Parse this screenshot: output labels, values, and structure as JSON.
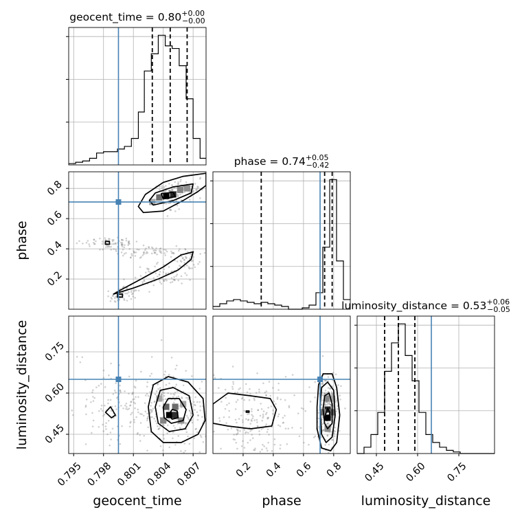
{
  "chart_data": {
    "type": "corner",
    "parameters": [
      "geocent_time",
      "phase",
      "luminosity_distance"
    ],
    "axis_labels": {
      "geocent_time": "geocent_time",
      "phase": "phase",
      "luminosity_distance": "luminosity_distance"
    },
    "ranges": {
      "geocent_time": [
        0.7945,
        0.8083
      ],
      "phase": [
        0.0,
        0.91
      ],
      "luminosity_distance": [
        0.38,
        0.88
      ]
    },
    "ticks": {
      "geocent_time": {
        "values": [
          0.795,
          0.798,
          0.801,
          0.804,
          0.807
        ],
        "labels": [
          "0.795",
          "0.798",
          "0.801",
          "0.804",
          "0.807"
        ]
      },
      "phase_x": {
        "values": [
          0.2,
          0.4,
          0.6,
          0.8
        ],
        "labels": [
          "0.2",
          "0.4",
          "0.6",
          "0.8"
        ]
      },
      "phase_y": {
        "values": [
          0.2,
          0.4,
          0.6,
          0.8
        ],
        "labels": [
          "0.2",
          "0.4",
          "0.6",
          "0.8"
        ]
      },
      "luminosity_distance": {
        "values": [
          0.45,
          0.6,
          0.75
        ],
        "labels": [
          "0.45",
          "0.60",
          "0.75"
        ]
      }
    },
    "truths": {
      "geocent_time": 0.7995,
      "phase": 0.71,
      "luminosity_distance": 0.65
    },
    "colors": {
      "truth": "#4682b4",
      "hist": "#000000",
      "grid": "#b0b0b0"
    },
    "grid": true,
    "titles": [
      {
        "param": "geocent_time",
        "prefix": "geocent_time = ",
        "value": "0.80",
        "plus": "+0.00",
        "minus": "−0.00"
      },
      {
        "param": "phase",
        "prefix": "phase = ",
        "value": "0.74",
        "plus": "+0.05",
        "minus": "−0.42"
      },
      {
        "param": "luminosity_distance",
        "prefix": "luminosity_distance = ",
        "value": "0.53",
        "plus": "+0.06",
        "minus": "−0.05"
      }
    ],
    "diagonals": [
      {
        "param": "geocent_time",
        "quantiles": [
          0.8029,
          0.8047,
          0.8064
        ],
        "bin_edges": [
          0.7945,
          0.7952,
          0.7959,
          0.7966,
          0.7973,
          0.798,
          0.7987,
          0.7994,
          0.8001,
          0.8008,
          0.8015,
          0.8021,
          0.8028,
          0.8035,
          0.8042,
          0.8049,
          0.8056,
          0.8063,
          0.807,
          0.8077,
          0.8083
        ],
        "counts": [
          1,
          2,
          3,
          5,
          9,
          10,
          10,
          12,
          14,
          20,
          40,
          71,
          84,
          98,
          90,
          88,
          75,
          50,
          20,
          5
        ]
      },
      {
        "param": "phase",
        "quantiles": [
          0.32,
          0.74,
          0.79
        ],
        "bin_edges": [
          0.0,
          0.0455,
          0.091,
          0.1365,
          0.182,
          0.2275,
          0.273,
          0.3185,
          0.364,
          0.4095,
          0.455,
          0.5005,
          0.546,
          0.5915,
          0.637,
          0.6825,
          0.728,
          0.7735,
          0.819,
          0.8645,
          0.91
        ],
        "counts": [
          2,
          4,
          6,
          7,
          6,
          5,
          4,
          5,
          4,
          3,
          2,
          0,
          0,
          1,
          3,
          12,
          45,
          94,
          35,
          7
        ]
      },
      {
        "param": "luminosity_distance",
        "quantiles": [
          0.48,
          0.53,
          0.59
        ],
        "bin_edges": [
          0.38,
          0.405,
          0.43,
          0.455,
          0.48,
          0.505,
          0.53,
          0.555,
          0.58,
          0.605,
          0.63,
          0.655,
          0.68,
          0.705,
          0.73,
          0.755,
          0.78,
          0.805,
          0.83,
          0.855,
          0.88
        ],
        "counts": [
          0,
          4,
          12,
          26,
          52,
          70,
          82,
          62,
          46,
          26,
          12,
          7,
          4,
          2,
          1,
          0,
          0,
          0,
          0,
          0
        ]
      }
    ],
    "pairs": [
      {
        "x": "geocent_time",
        "y": "phase",
        "blobs": [
          {
            "cx": 0.8045,
            "cy": 0.75,
            "sx": 0.0007,
            "sy": 0.045,
            "w": 3,
            "n": 90
          },
          {
            "cx": 0.8063,
            "cy": 0.8,
            "sx": 0.0007,
            "sy": 0.04,
            "w": 2,
            "n": 60
          },
          {
            "cx": 0.7985,
            "cy": 0.44,
            "sx": 0.0015,
            "sy": 0.02,
            "w": 1,
            "n": 70
          },
          {
            "cx": 0.803,
            "cy": 0.38,
            "sx": 0.002,
            "sy": 0.02,
            "w": 1,
            "n": 70
          },
          {
            "cx": 0.8,
            "cy": 0.1,
            "sx": 0.0008,
            "sy": 0.035,
            "w": 1,
            "n": 60
          },
          {
            "cx": 0.804,
            "cy": 0.22,
            "sx": 0.0015,
            "sy": 0.04,
            "w": 1,
            "n": 70
          },
          {
            "cx": 0.8065,
            "cy": 0.32,
            "sx": 0.0007,
            "sy": 0.03,
            "w": 1,
            "n": 40
          }
        ],
        "cells": [
          [
            0.8043,
            0.75,
            1.0
          ],
          [
            0.805,
            0.76,
            0.85
          ],
          [
            0.8036,
            0.74,
            0.55
          ],
          [
            0.8057,
            0.79,
            0.45
          ],
          [
            0.8064,
            0.8,
            0.4
          ],
          [
            0.8029,
            0.71,
            0.3
          ]
        ],
        "contours": [
          [
            [
              0.802,
              0.64
            ],
            [
              0.804,
              0.65
            ],
            [
              0.806,
              0.72
            ],
            [
              0.8075,
              0.78
            ],
            [
              0.8083,
              0.82
            ],
            [
              0.8083,
              0.9
            ],
            [
              0.806,
              0.88
            ],
            [
              0.804,
              0.84
            ],
            [
              0.8022,
              0.76
            ],
            [
              0.8015,
              0.68
            ]
          ],
          [
            [
              0.803,
              0.69
            ],
            [
              0.805,
              0.72
            ],
            [
              0.8068,
              0.77
            ],
            [
              0.807,
              0.83
            ],
            [
              0.805,
              0.81
            ],
            [
              0.8032,
              0.77
            ],
            [
              0.8026,
              0.72
            ]
          ],
          [
            [
              0.804,
              0.73
            ],
            [
              0.8052,
              0.745
            ],
            [
              0.805,
              0.775
            ],
            [
              0.8038,
              0.765
            ]
          ],
          [
            [
              0.799,
              0.1
            ],
            [
              0.801,
              0.14
            ],
            [
              0.8035,
              0.2
            ],
            [
              0.8055,
              0.26
            ],
            [
              0.8068,
              0.33
            ],
            [
              0.807,
              0.38
            ],
            [
              0.8058,
              0.36
            ],
            [
              0.804,
              0.28
            ],
            [
              0.8015,
              0.19
            ],
            [
              0.7998,
              0.13
            ]
          ],
          [
            [
              0.7982,
              0.43
            ],
            [
              0.7986,
              0.43
            ],
            [
              0.7986,
              0.45
            ],
            [
              0.7982,
              0.45
            ]
          ],
          [
            [
              0.7994,
              0.08
            ],
            [
              0.7999,
              0.08
            ],
            [
              0.7999,
              0.1
            ],
            [
              0.7994,
              0.1
            ]
          ]
        ]
      },
      {
        "x": "geocent_time",
        "y": "luminosity_distance",
        "blobs": [
          {
            "cx": 0.8048,
            "cy": 0.53,
            "sx": 0.0022,
            "sy": 0.075,
            "w": 3,
            "n": 260
          },
          {
            "cx": 0.799,
            "cy": 0.55,
            "sx": 0.0022,
            "sy": 0.07,
            "w": 1,
            "n": 120
          }
        ],
        "cells": [
          [
            0.8046,
            0.52,
            1.0
          ],
          [
            0.8052,
            0.52,
            0.8
          ],
          [
            0.8043,
            0.55,
            0.6
          ],
          [
            0.8052,
            0.55,
            0.55
          ],
          [
            0.804,
            0.5,
            0.45
          ],
          [
            0.8058,
            0.5,
            0.4
          ],
          [
            0.8036,
            0.58,
            0.3
          ],
          [
            0.806,
            0.56,
            0.3
          ]
        ],
        "contours": [
          [
            [
              0.8025,
              0.55
            ],
            [
              0.803,
              0.63
            ],
            [
              0.8045,
              0.66
            ],
            [
              0.8065,
              0.64
            ],
            [
              0.808,
              0.58
            ],
            [
              0.8082,
              0.5
            ],
            [
              0.8075,
              0.45
            ],
            [
              0.8058,
              0.42
            ],
            [
              0.804,
              0.42
            ],
            [
              0.8028,
              0.46
            ]
          ],
          [
            [
              0.8032,
              0.55
            ],
            [
              0.8037,
              0.61
            ],
            [
              0.805,
              0.62
            ],
            [
              0.8066,
              0.59
            ],
            [
              0.807,
              0.52
            ],
            [
              0.8062,
              0.47
            ],
            [
              0.8046,
              0.46
            ],
            [
              0.8035,
              0.49
            ]
          ],
          [
            [
              0.804,
              0.55
            ],
            [
              0.8045,
              0.58
            ],
            [
              0.8056,
              0.58
            ],
            [
              0.8063,
              0.54
            ],
            [
              0.806,
              0.5
            ],
            [
              0.8048,
              0.49
            ],
            [
              0.8041,
              0.51
            ]
          ],
          [
            [
              0.8045,
              0.52
            ],
            [
              0.8049,
              0.54
            ],
            [
              0.8054,
              0.535
            ],
            [
              0.8055,
              0.51
            ],
            [
              0.8049,
              0.505
            ]
          ],
          [
            [
              0.7982,
              0.53
            ],
            [
              0.7988,
              0.51
            ],
            [
              0.7992,
              0.52
            ],
            [
              0.7987,
              0.55
            ]
          ]
        ]
      },
      {
        "x": "phase",
        "y": "luminosity_distance",
        "blobs": [
          {
            "cx": 0.76,
            "cy": 0.53,
            "sx": 0.04,
            "sy": 0.07,
            "w": 3,
            "n": 240
          },
          {
            "cx": 0.25,
            "cy": 0.52,
            "sx": 0.14,
            "sy": 0.07,
            "w": 2,
            "n": 200
          }
        ],
        "cells": [
          [
            0.76,
            0.51,
            1.0
          ],
          [
            0.76,
            0.54,
            0.85
          ],
          [
            0.79,
            0.53,
            0.6
          ],
          [
            0.73,
            0.53,
            0.5
          ],
          [
            0.76,
            0.58,
            0.45
          ],
          [
            0.76,
            0.47,
            0.4
          ],
          [
            0.79,
            0.58,
            0.3
          ]
        ],
        "contours": [
          [
            [
              0.0,
              0.56
            ],
            [
              0.1,
              0.6
            ],
            [
              0.25,
              0.59
            ],
            [
              0.38,
              0.58
            ],
            [
              0.42,
              0.54
            ],
            [
              0.39,
              0.48
            ],
            [
              0.25,
              0.47
            ],
            [
              0.1,
              0.48
            ],
            [
              0.0,
              0.49
            ]
          ],
          [
            [
              0.69,
              0.55
            ],
            [
              0.7,
              0.63
            ],
            [
              0.73,
              0.67
            ],
            [
              0.79,
              0.67
            ],
            [
              0.82,
              0.62
            ],
            [
              0.84,
              0.52
            ],
            [
              0.82,
              0.42
            ],
            [
              0.78,
              0.39
            ],
            [
              0.72,
              0.4
            ],
            [
              0.69,
              0.47
            ]
          ],
          [
            [
              0.71,
              0.55
            ],
            [
              0.72,
              0.62
            ],
            [
              0.76,
              0.64
            ],
            [
              0.8,
              0.61
            ],
            [
              0.81,
              0.52
            ],
            [
              0.79,
              0.44
            ],
            [
              0.75,
              0.42
            ],
            [
              0.72,
              0.45
            ]
          ],
          [
            [
              0.73,
              0.54
            ],
            [
              0.74,
              0.59
            ],
            [
              0.77,
              0.6
            ],
            [
              0.79,
              0.56
            ],
            [
              0.79,
              0.49
            ],
            [
              0.76,
              0.47
            ],
            [
              0.74,
              0.49
            ]
          ],
          [
            [
              0.745,
              0.52
            ],
            [
              0.76,
              0.545
            ],
            [
              0.775,
              0.53
            ],
            [
              0.77,
              0.505
            ],
            [
              0.755,
              0.5
            ]
          ],
          [
            [
              0.22,
              0.53
            ],
            [
              0.24,
              0.53
            ],
            [
              0.24,
              0.535
            ],
            [
              0.22,
              0.535
            ]
          ]
        ]
      }
    ]
  }
}
